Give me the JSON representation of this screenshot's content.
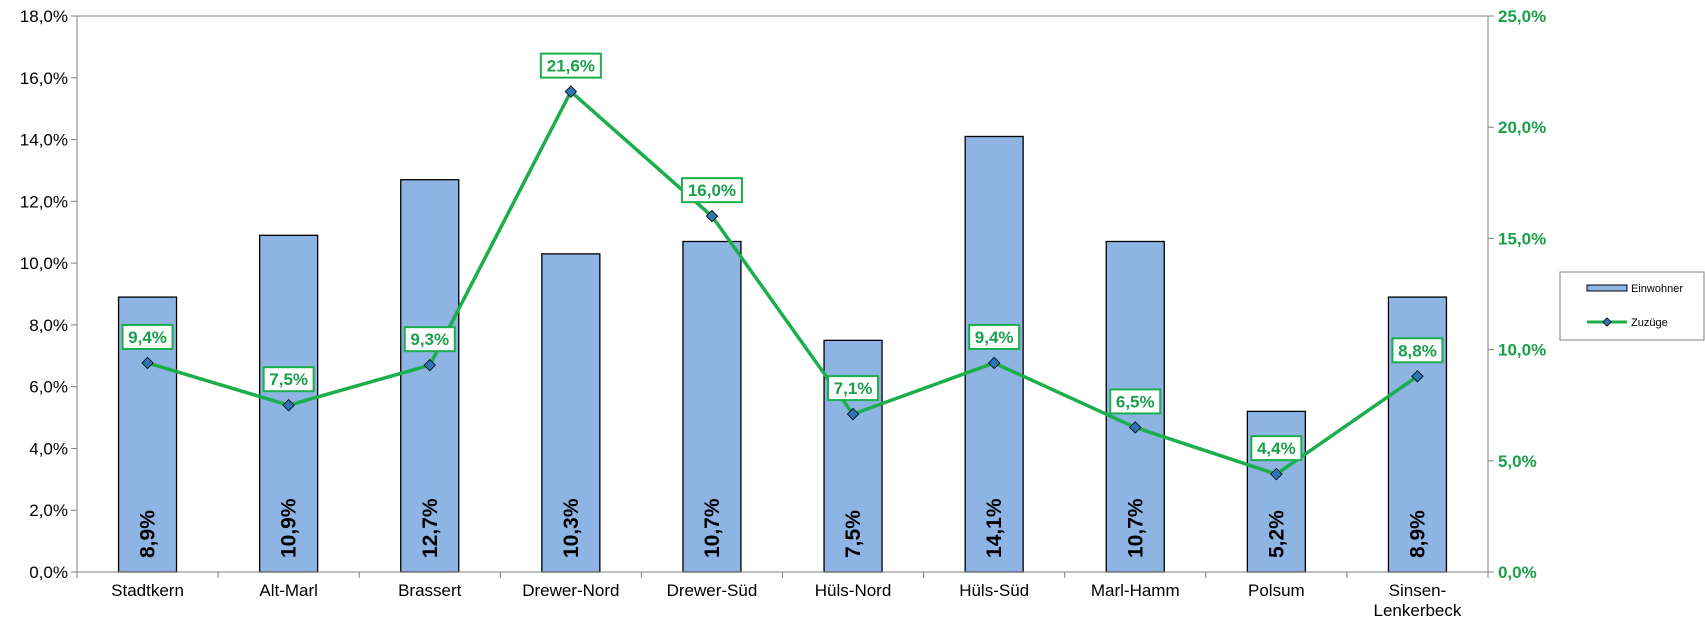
{
  "colors": {
    "bar_fill": "#8eb4e3",
    "bar_stroke": "#000000",
    "line": "#1aaf4b",
    "line_text": "#1a9f4b",
    "marker_fill": "#2e75b6",
    "axis": "#808080"
  },
  "chart_data": {
    "type": "bar",
    "categories": [
      "Stadtkern",
      "Alt-Marl",
      "Brassert",
      "Drewer-Nord",
      "Drewer-Süd",
      "Hüls-Nord",
      "Hüls-Süd",
      "Marl-Hamm",
      "Polsum",
      "Sinsen-Lenkerbeck"
    ],
    "category_lines": [
      [
        "Stadtkern"
      ],
      [
        "Alt-Marl"
      ],
      [
        "Brassert"
      ],
      [
        "Drewer-Nord"
      ],
      [
        "Drewer-Süd"
      ],
      [
        "Hüls-Nord"
      ],
      [
        "Hüls-Süd"
      ],
      [
        "Marl-Hamm"
      ],
      [
        "Polsum"
      ],
      [
        "Sinsen-",
        "Lenkerbeck"
      ]
    ],
    "series": [
      {
        "name": "Einwohner",
        "type": "bar",
        "axis": "left",
        "values": [
          8.9,
          10.9,
          12.7,
          10.3,
          10.7,
          7.5,
          14.1,
          10.7,
          5.2,
          8.9
        ],
        "labels": [
          "8,9%",
          "10,9%",
          "12,7%",
          "10,3%",
          "10,7%",
          "7,5%",
          "14,1%",
          "10,7%",
          "5,2%",
          "8,9%"
        ]
      },
      {
        "name": "Zuzüge",
        "type": "line",
        "axis": "right",
        "values": [
          9.4,
          7.5,
          9.3,
          21.6,
          16.0,
          7.1,
          9.4,
          6.5,
          4.4,
          8.8
        ],
        "labels": [
          "9,4%",
          "7,5%",
          "9,3%",
          "21,6%",
          "16,0%",
          "7,1%",
          "9,4%",
          "6,5%",
          "4,4%",
          "8,8%"
        ]
      }
    ],
    "y_left": {
      "ylim": [
        0,
        18
      ],
      "ticks": [
        0,
        2,
        4,
        6,
        8,
        10,
        12,
        14,
        16,
        18
      ],
      "tick_labels": [
        "0,0%",
        "2,0%",
        "4,0%",
        "6,0%",
        "8,0%",
        "10,0%",
        "12,0%",
        "14,0%",
        "16,0%",
        "18,0%"
      ]
    },
    "y_right": {
      "ylim": [
        0,
        25
      ],
      "ticks": [
        0,
        5,
        10,
        15,
        20,
        25
      ],
      "tick_labels": [
        "0,0%",
        "5,0%",
        "10,0%",
        "15,0%",
        "20,0%",
        "25,0%"
      ]
    },
    "grid": false,
    "legend_position": "right"
  }
}
